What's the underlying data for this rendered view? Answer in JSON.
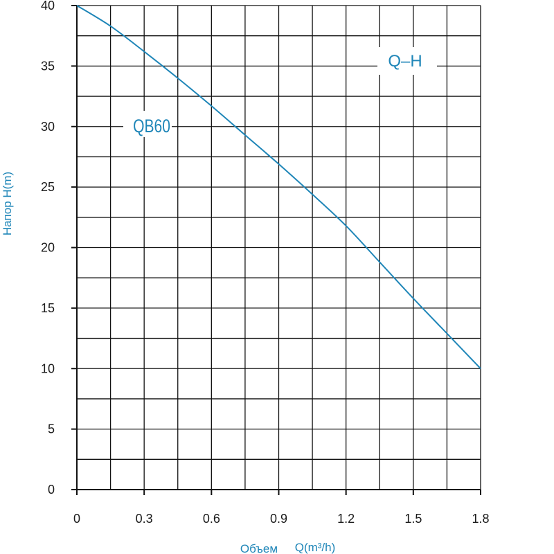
{
  "chart_data": {
    "type": "line",
    "xlabel_main": "Объем",
    "xlabel_unit": "Q(m³/h)",
    "ylabel": "Напор H(m)",
    "xlim": [
      0,
      1.8
    ],
    "ylim": [
      0,
      40
    ],
    "x_ticks": [
      "0",
      "0.3",
      "0.6",
      "0.9",
      "1.2",
      "1.5",
      "1.8"
    ],
    "y_ticks": [
      "0",
      "5",
      "10",
      "15",
      "20",
      "25",
      "30",
      "35",
      "40"
    ],
    "grid": true,
    "annotations": {
      "model": "QB60",
      "curve": "Q–H"
    },
    "series": [
      {
        "color": "#1f86b8",
        "x": [
          0,
          0.15,
          0.3,
          0.45,
          0.6,
          0.75,
          0.9,
          1.05,
          1.2,
          1.35,
          1.5,
          1.65,
          1.8
        ],
        "y": [
          40,
          38.3,
          36.2,
          34.0,
          31.7,
          29.3,
          26.9,
          24.4,
          21.8,
          18.8,
          15.8,
          12.9,
          10.0
        ]
      }
    ]
  }
}
